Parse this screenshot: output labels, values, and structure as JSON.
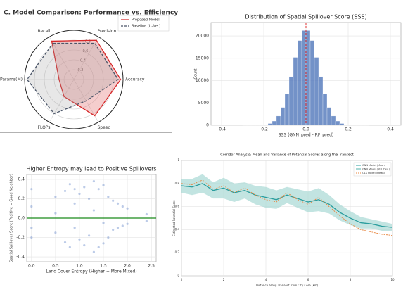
{
  "chart_data": [
    {
      "type": "radar",
      "title": "C. Model Comparison: Performance vs. Efficiency",
      "axes": [
        "Recall",
        "Precision",
        "Accuracy",
        "Speed",
        "FLOPs",
        "Params(M)"
      ],
      "rlim": [
        0,
        1
      ],
      "rticks": [
        0.2,
        0.4,
        0.6,
        0.8
      ],
      "series": [
        {
          "name": "Proposed Model",
          "color": "#d62728",
          "style": "solid",
          "values": [
            0.9,
            0.92,
            0.95,
            0.85,
            0.4,
            0.3
          ]
        },
        {
          "name": "Baseline (U-Net)",
          "color": "#4a5568",
          "style": "dashed",
          "values": [
            0.85,
            0.85,
            0.9,
            0.5,
            0.8,
            0.95
          ]
        }
      ]
    },
    {
      "type": "histogram",
      "title": "Distribution of Spatial Spillover Score (SSS)",
      "x_label": "SSS (GNN_pred - RF_pred)",
      "y_label": "Count",
      "color": "#5b7fbf",
      "bins": [
        -0.3,
        -0.28,
        -0.26,
        -0.24,
        -0.22,
        -0.2,
        -0.18,
        -0.16,
        -0.14,
        -0.12,
        -0.1,
        -0.08,
        -0.06,
        -0.04,
        -0.02,
        0,
        0.02,
        0.04,
        0.06,
        0.08,
        0.1,
        0.12,
        0.14,
        0.16,
        0.18,
        0.2,
        0.22,
        0.24,
        0.26,
        0.28,
        0.3
      ],
      "values": [
        1,
        2,
        5,
        15,
        50,
        140,
        390,
        940,
        2060,
        4000,
        6990,
        10880,
        15200,
        18970,
        21200,
        21200,
        18970,
        15200,
        10880,
        6990,
        4000,
        2060,
        940,
        390,
        140,
        50,
        15,
        5,
        2,
        1
      ],
      "vline": 0,
      "vline_color": "#e03030",
      "xlim": [
        -0.45,
        0.45
      ],
      "xticks": [
        -0.4,
        -0.2,
        {
          "value": 0,
          "label": "0.0"
        },
        0.2,
        0.4
      ],
      "ylim": [
        0,
        23000
      ],
      "yticks": [
        0,
        5000,
        10000,
        15000,
        20000
      ],
      "grid": true
    },
    {
      "type": "scatter",
      "title": "Higher Entropy may lead to Positive Spillovers",
      "x_label": "Land Cover Entropy (Higher = More Mixed)",
      "y_label": "Spatial Spillover Score (Positive = Good Neighbor)",
      "color": "#6b8ccc",
      "hline": 0,
      "hline_color": "#1a8a1a",
      "x": [
        0,
        0,
        0,
        0,
        0.5,
        0.5,
        0.5,
        0.7,
        0.7,
        0.8,
        0.8,
        0.9,
        0.9,
        0.9,
        1.0,
        1.0,
        1.1,
        1.1,
        1.2,
        1.2,
        1.3,
        1.3,
        1.3,
        1.4,
        1.4,
        1.5,
        1.5,
        1.5,
        1.6,
        1.6,
        1.7,
        1.7,
        1.8,
        1.8,
        1.9,
        1.9,
        2.0,
        2.0,
        2.4,
        2.4
      ],
      "y": [
        0.12,
        -0.1,
        0.3,
        -0.2,
        0.22,
        -0.15,
        0.05,
        0.28,
        -0.25,
        0.35,
        -0.3,
        0.3,
        -0.1,
        0.15,
        0.25,
        -0.22,
        0.32,
        -0.28,
        0.2,
        -0.18,
        0.38,
        -0.35,
        0.08,
        0.3,
        -0.3,
        0.34,
        -0.26,
        -0.05,
        0.22,
        -0.2,
        0.18,
        -0.12,
        0.15,
        -0.1,
        0.12,
        -0.08,
        0.1,
        -0.06,
        0.04,
        -0.03
      ],
      "xlim": [
        -0.1,
        2.6
      ],
      "xticks": [
        {
          "value": 0,
          "label": "0.0"
        },
        0.5,
        {
          "value": 1,
          "label": "1.0"
        },
        1.5,
        {
          "value": 2,
          "label": "2.0"
        },
        2.5
      ],
      "ylim": [
        -0.45,
        0.45
      ],
      "yticks": [
        -0.4,
        -0.2,
        {
          "value": 0,
          "label": "0.0"
        },
        0.2,
        0.4
      ],
      "grid": true
    },
    {
      "type": "line",
      "title": "Corridor Analysis: Mean and Variance of Potential Scores along the Transect",
      "x_label": "Distance along Transect from City Core (km)",
      "y_label": "Estimated Potential Score",
      "x": [
        0,
        0.5,
        1,
        1.5,
        2,
        2.5,
        3,
        3.5,
        4,
        4.5,
        5,
        5.5,
        6,
        6.5,
        7,
        7.5,
        8,
        8.5,
        9,
        9.5,
        10
      ],
      "series": [
        {
          "name": "GNN Model (Mean)",
          "color": "#2a9d9d",
          "style": "solid",
          "values": [
            0.78,
            0.77,
            0.8,
            0.74,
            0.76,
            0.72,
            0.74,
            0.7,
            0.68,
            0.66,
            0.7,
            0.67,
            0.64,
            0.66,
            0.62,
            0.55,
            0.5,
            0.46,
            0.45,
            0.43,
            0.42
          ]
        },
        {
          "name": "GNN Model (Std. Dev.)",
          "color": "#a8d8d4",
          "style": "band",
          "values": [
            0.06,
            0.07,
            0.08,
            0.07,
            0.09,
            0.08,
            0.07,
            0.08,
            0.09,
            0.08,
            0.07,
            0.08,
            0.09,
            0.1,
            0.08,
            0.07,
            0.06,
            0.05,
            0.04,
            0.04,
            0.03
          ]
        },
        {
          "name": "OLS Model (Mean)",
          "color": "#e8843c",
          "style": "dashed",
          "values": [
            0.8,
            0.79,
            0.83,
            0.75,
            0.78,
            0.72,
            0.76,
            0.7,
            0.66,
            0.64,
            0.72,
            0.66,
            0.62,
            0.68,
            0.6,
            0.52,
            0.45,
            0.4,
            0.38,
            0.36,
            0.35
          ]
        }
      ],
      "xlim": [
        0,
        10
      ],
      "xticks": [
        0,
        2,
        4,
        6,
        8,
        10
      ],
      "ylim": [
        0,
        1
      ],
      "yticks": [
        0,
        0.2,
        0.4,
        0.6,
        0.8,
        1
      ],
      "grid": true
    }
  ]
}
